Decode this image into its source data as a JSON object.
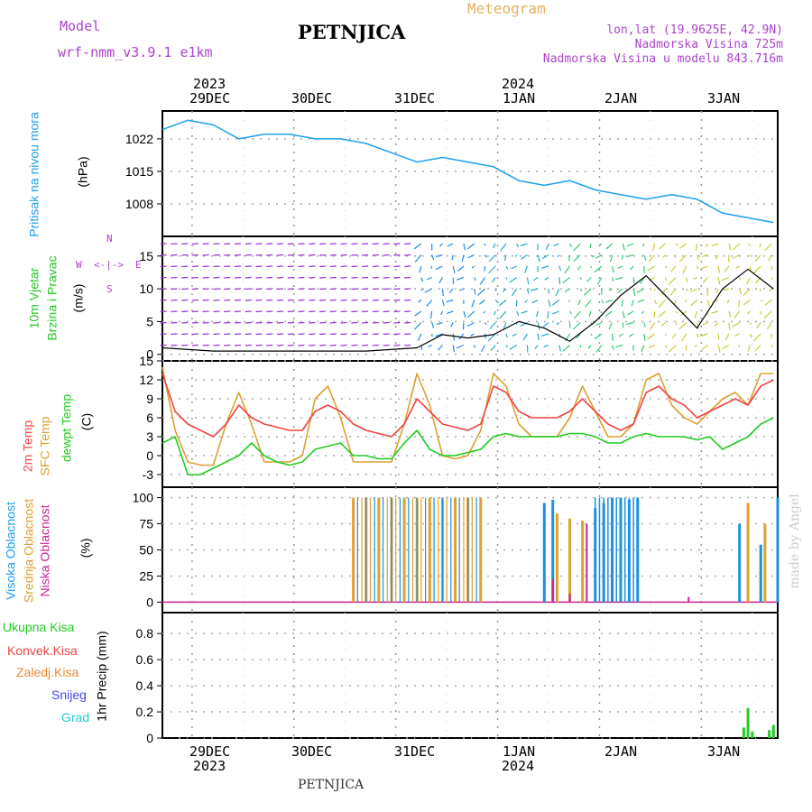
{
  "header": {
    "model_label": "Model",
    "model_name": "wrf-nmm_v3.9.1 e1km",
    "station": "PETNJICA",
    "meteogram": "Meteogram",
    "lonlat": "lon,lat (19.9625E, 42.9N)",
    "elevation": "Nadmorska Visina 725m",
    "model_elevation": "Nadmorska Visina u modelu 843.716m",
    "footer_station": "PETNJICA",
    "watermark": "made by Angel"
  },
  "colors": {
    "pressure": "#1ea0ee",
    "temp2m": "#ee4444",
    "sfc_temp": "#dda030",
    "dewpt": "#22cc22",
    "cloud_high": "#1e90e0",
    "cloud_mid": "#e0a030",
    "cloud_low": "#cc2299",
    "precip_total": "#22cc22",
    "label_purple": "#aa44cc",
    "wind_purple": "#9933dd"
  },
  "time_axis": {
    "top_years": [
      "2023",
      "2024"
    ],
    "bottom_years": [
      "2023",
      "2024"
    ],
    "days": [
      "29DEC",
      "30DEC",
      "31DEC",
      "1JAN",
      "2JAN",
      "3JAN"
    ]
  },
  "panels": {
    "pressure": {
      "label": "Pritisak na nivou mora",
      "unit": "(hPa)",
      "ticks": [
        "1022",
        "1015",
        "1008"
      ]
    },
    "wind": {
      "label1": "10m Vjetar",
      "label2": "Brzina i Pravac",
      "unit": "(m/s)",
      "compass_n": "N",
      "compass_w": "W",
      "compass_e": "E",
      "compass_s": "S",
      "ticks": [
        "15",
        "10",
        "5",
        "0"
      ]
    },
    "temp": {
      "label_2m": "2m Temp",
      "label_sfc": "SFC Temp",
      "label_dew": "dewpt Temp",
      "unit": "(C)",
      "ticks": [
        "15",
        "12",
        "9",
        "6",
        "3",
        "0",
        "-3"
      ]
    },
    "cloud": {
      "label_high": "Visoka Oblacnost",
      "label_mid": "Srednja Oblacnost",
      "label_low": "Niska Oblacnost",
      "unit": "(%)",
      "ticks": [
        "100",
        "75",
        "50",
        "25",
        "0"
      ]
    },
    "precip": {
      "ylabel": "1hr Precip (mm)",
      "ticks": [
        "0.8",
        "0.6",
        "0.4",
        "0.2",
        "0"
      ],
      "legend": [
        "Ukupna Kisa",
        "Konvek.Kisa",
        "Zaledj.Kisa",
        "Snijeg",
        "Grad"
      ],
      "legend_colors": [
        "#22cc22",
        "#ee4444",
        "#ee8833",
        "#4444ee",
        "#22cccc"
      ]
    }
  },
  "chart_data": {
    "type": "line",
    "x_unit": "hours from 2023-12-28 17:00",
    "pressure_hpa": {
      "x": [
        0,
        6,
        12,
        18,
        24,
        30,
        36,
        42,
        48,
        54,
        60,
        66,
        72,
        78,
        84,
        90,
        96,
        102,
        108,
        114,
        120,
        126,
        132,
        138,
        144
      ],
      "y": [
        1024,
        1026,
        1025,
        1022,
        1023,
        1023,
        1022,
        1022,
        1021,
        1019,
        1017,
        1018,
        1017,
        1016,
        1013,
        1012,
        1013,
        1011,
        1010,
        1009,
        1010,
        1009,
        1006,
        1005,
        1004
      ]
    },
    "temp_2m_c": {
      "x": [
        0,
        3,
        6,
        9,
        12,
        15,
        18,
        21,
        24,
        27,
        30,
        33,
        36,
        39,
        42,
        45,
        48,
        51,
        54,
        57,
        60,
        63,
        66,
        69,
        72,
        75,
        78,
        81,
        84,
        87,
        90,
        93,
        96,
        99,
        102,
        105,
        108,
        111,
        114,
        117,
        120,
        123,
        126,
        129,
        132,
        135,
        138,
        141,
        144
      ],
      "y": [
        13,
        7,
        5,
        4,
        3,
        5,
        8,
        6,
        5,
        4.5,
        4,
        4,
        7,
        8,
        7,
        5,
        4,
        3.5,
        3,
        5,
        9,
        7,
        5,
        4.5,
        4,
        5,
        11,
        10,
        7,
        6,
        6,
        6,
        7,
        9,
        7,
        5,
        4,
        5,
        10,
        11,
        9,
        8,
        6,
        7,
        8,
        9,
        8,
        11,
        12
      ]
    },
    "temp_sfc_c": {
      "x": [
        0,
        3,
        6,
        9,
        12,
        15,
        18,
        21,
        24,
        27,
        30,
        33,
        36,
        39,
        42,
        45,
        48,
        51,
        54,
        57,
        60,
        63,
        66,
        69,
        72,
        75,
        78,
        81,
        84,
        87,
        90,
        93,
        96,
        99,
        102,
        105,
        108,
        111,
        114,
        117,
        120,
        123,
        126,
        129,
        132,
        135,
        138,
        141,
        144
      ],
      "y": [
        14,
        4,
        -1,
        -1.5,
        -1.5,
        5,
        10,
        5,
        -1,
        -1,
        -1,
        0,
        9,
        11,
        6,
        -1,
        -1,
        -1,
        -1,
        5,
        13,
        8,
        0,
        -0.5,
        0,
        4,
        13,
        11,
        5,
        3,
        3,
        3,
        6,
        11,
        7,
        3,
        3,
        5,
        12,
        13,
        8,
        6,
        5,
        7,
        9,
        10,
        8,
        13,
        13
      ]
    },
    "dewpt_c": {
      "x": [
        0,
        3,
        6,
        9,
        12,
        15,
        18,
        21,
        24,
        27,
        30,
        33,
        36,
        39,
        42,
        45,
        48,
        51,
        54,
        57,
        60,
        63,
        66,
        69,
        72,
        75,
        78,
        81,
        84,
        87,
        90,
        93,
        96,
        99,
        102,
        105,
        108,
        111,
        114,
        117,
        120,
        123,
        126,
        129,
        132,
        135,
        138,
        141,
        144
      ],
      "y": [
        2,
        3,
        -3,
        -3,
        -2,
        -1,
        0,
        2,
        0,
        -1,
        -1.5,
        -1,
        1,
        1.5,
        2,
        0,
        0,
        -0.5,
        -0.5,
        2,
        4,
        1,
        0,
        0,
        0.5,
        1,
        3,
        3.5,
        3,
        3,
        3,
        3,
        3.5,
        3.5,
        3,
        2,
        2,
        3,
        3.5,
        3,
        3,
        3,
        2.5,
        3,
        1,
        2,
        3,
        5,
        6
      ]
    },
    "wind_speed_ms": {
      "x": [
        0,
        12,
        24,
        36,
        48,
        60,
        66,
        72,
        78,
        84,
        90,
        96,
        102,
        108,
        114,
        120,
        126,
        132,
        138,
        144
      ],
      "y": [
        1,
        0.5,
        0.5,
        0.5,
        0.5,
        1,
        3,
        2.5,
        3,
        5,
        4,
        2,
        5,
        9,
        12,
        8,
        4,
        10,
        13,
        10
      ]
    },
    "clouds_pct": {
      "high": {
        "x": [
          90,
          92,
          102,
          104,
          106,
          108,
          110,
          112,
          136,
          141,
          145
        ],
        "y": [
          95,
          98,
          90,
          95,
          100,
          100,
          98,
          100,
          75,
          55,
          100
        ]
      },
      "mid": {
        "x": [
          45,
          48,
          51,
          54,
          57,
          60,
          63,
          66,
          69,
          72,
          75,
          93,
          96,
          99,
          138,
          142
        ],
        "y": [
          100,
          100,
          100,
          100,
          100,
          100,
          100,
          100,
          100,
          100,
          100,
          85,
          80,
          78,
          95,
          75
        ]
      },
      "low": {
        "x": [
          92,
          96,
          100,
          106,
          124
        ],
        "y": [
          22,
          8,
          75,
          40,
          5
        ]
      }
    },
    "precip_mm": {
      "x": [
        137,
        138,
        139,
        143,
        144
      ],
      "y": [
        0.08,
        0.23,
        0.05,
        0.06,
        0.1
      ]
    },
    "ylim": {
      "pressure": [
        1001,
        1028
      ],
      "wind": [
        -1,
        18
      ],
      "temp": [
        -5,
        15
      ],
      "cloud": [
        -10,
        110
      ],
      "precip": [
        0,
        0.96
      ]
    }
  }
}
